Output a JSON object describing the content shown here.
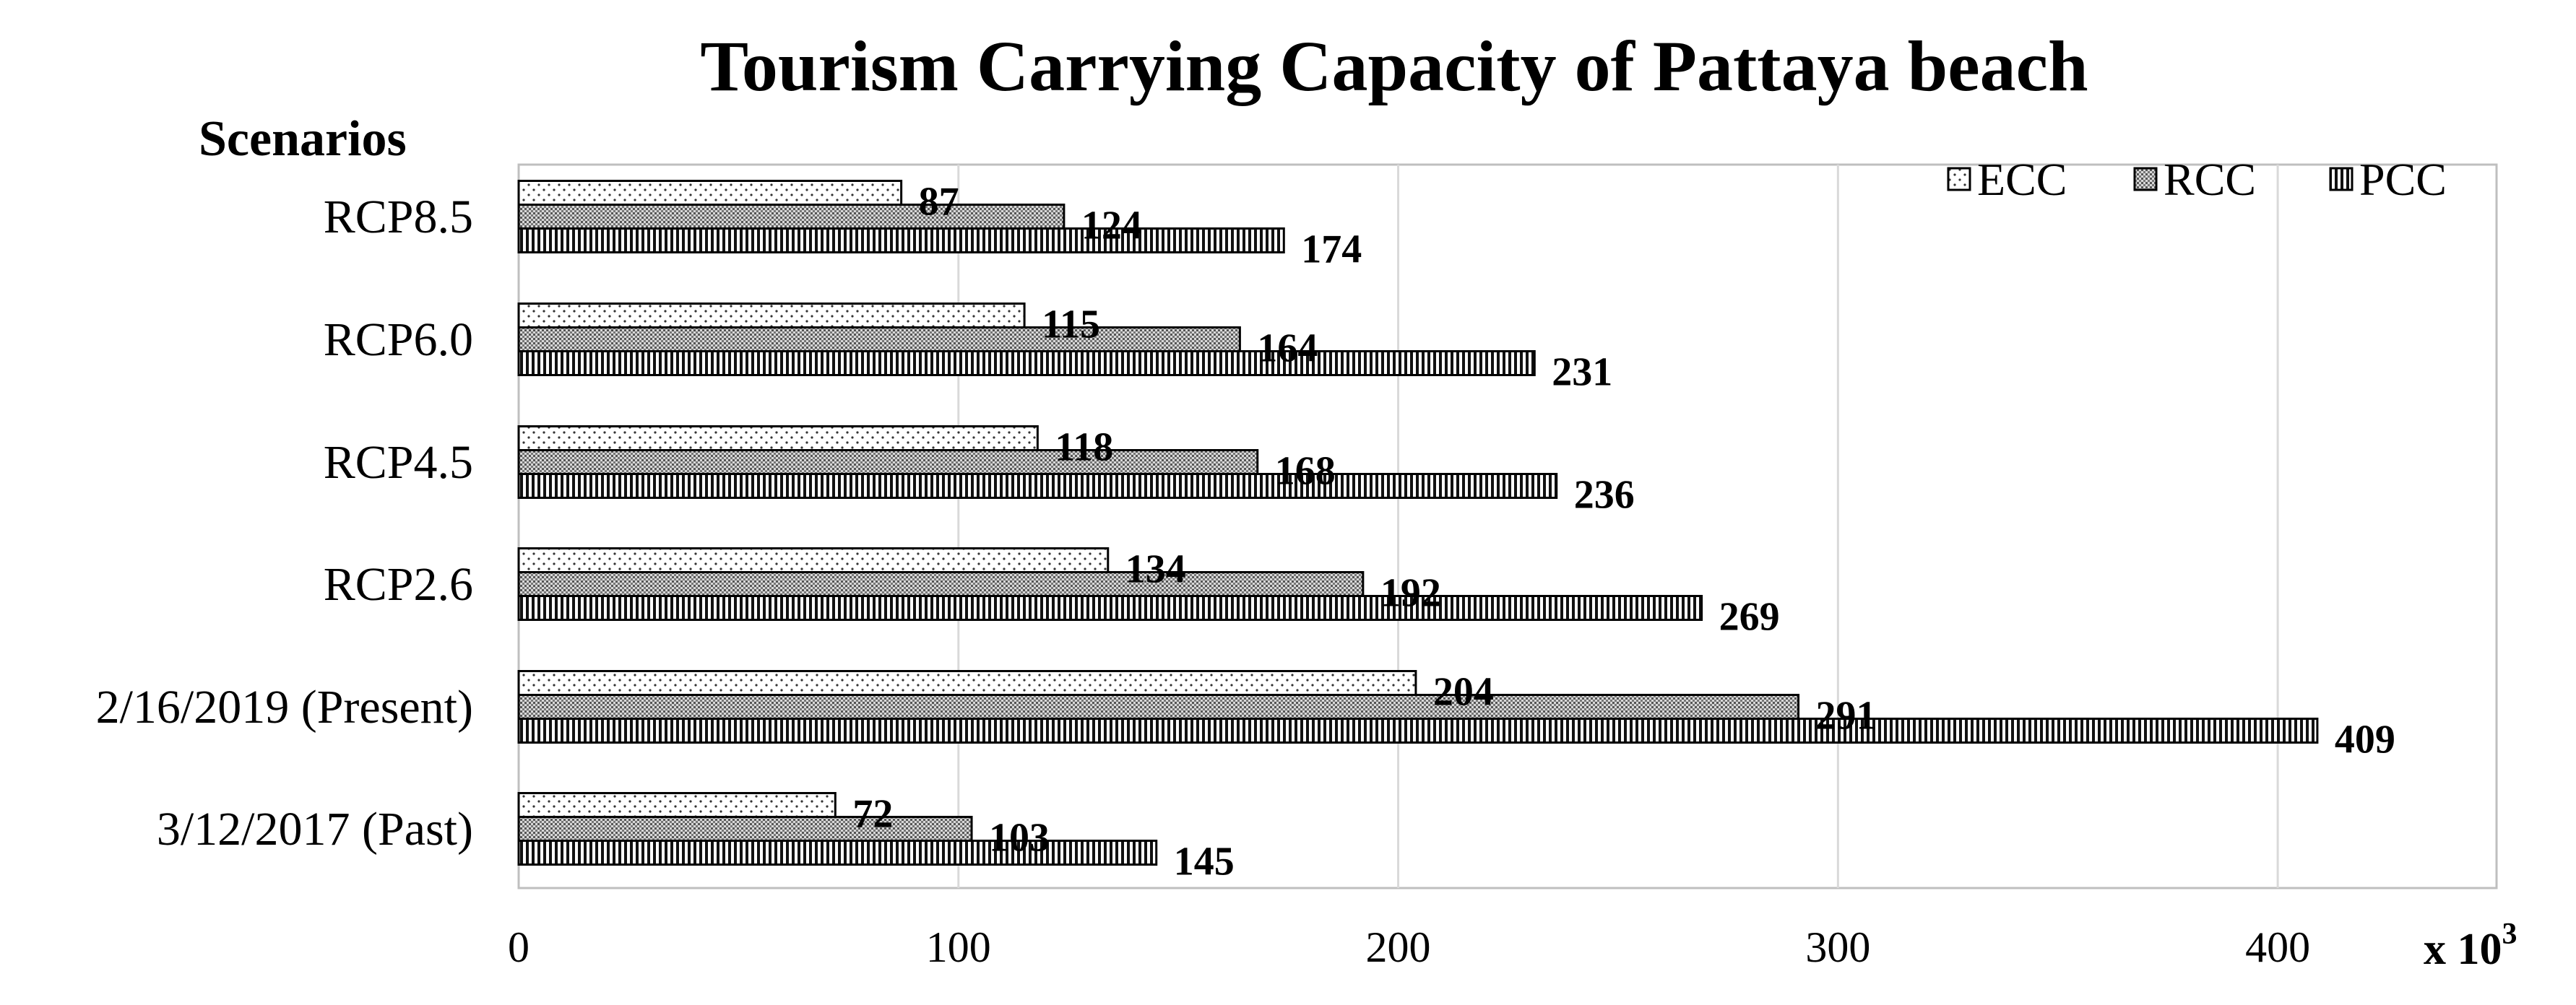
{
  "chart_data": {
    "type": "bar",
    "orientation": "horizontal",
    "title": "Tourism Carrying Capacity of Pattaya beach",
    "ylabel": "Scenarios",
    "x_unit_label": "x 10",
    "x_unit_exponent": "3",
    "categories": [
      "RCP8.5",
      "RCP6.0",
      "RCP4.5",
      "RCP2.6",
      "2/16/2019 (Present)",
      "3/12/2017 (Past)"
    ],
    "series": [
      {
        "name": "ECC",
        "values": [
          87,
          115,
          118,
          134,
          204,
          72
        ],
        "pattern": "dots"
      },
      {
        "name": "RCC",
        "values": [
          124,
          164,
          168,
          192,
          291,
          103
        ],
        "pattern": "stipple"
      },
      {
        "name": "PCC",
        "values": [
          174,
          231,
          236,
          269,
          409,
          145
        ],
        "pattern": "vertical-lines"
      }
    ],
    "xlim": [
      0,
      450
    ],
    "xticks": [
      0,
      100,
      200,
      300,
      400
    ],
    "grid": "vertical",
    "legend_position": "top-right"
  }
}
